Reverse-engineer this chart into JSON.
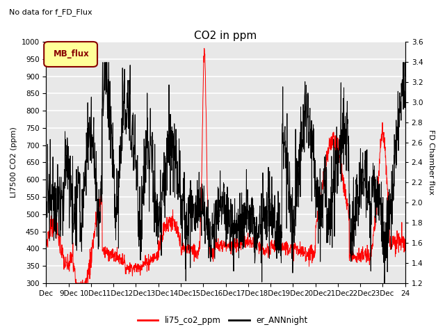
{
  "title": "CO2 in ppm",
  "subtitle": "No data for f_FD_Flux",
  "ylabel_left": "LI7500 CO2 (ppm)",
  "ylabel_right": "FD Chamber flux",
  "ylim_left": [
    300,
    1000
  ],
  "ylim_right": [
    1.2,
    3.6
  ],
  "yticks_left": [
    300,
    350,
    400,
    450,
    500,
    550,
    600,
    650,
    700,
    750,
    800,
    850,
    900,
    950,
    1000
  ],
  "yticks_right": [
    1.2,
    1.4,
    1.6,
    1.8,
    2.0,
    2.2,
    2.4,
    2.6,
    2.8,
    3.0,
    3.2,
    3.4,
    3.6
  ],
  "xtick_labels": [
    "Dec",
    "9Dec",
    "10Dec",
    "11Dec",
    "12Dec",
    "13Dec",
    "14Dec",
    "15Dec",
    "16Dec",
    "17Dec",
    "18Dec",
    "19Dec",
    "20Dec",
    "21Dec",
    "22Dec",
    "23Dec",
    "24"
  ],
  "line1_color": "#ff0000",
  "line2_color": "#000000",
  "line1_label": "li75_co2_ppm",
  "line2_label": "er_ANNnight",
  "legend_box_facecolor": "#ffff99",
  "legend_box_label": "MB_flux",
  "legend_box_edgecolor": "#880000",
  "background_color": "#e8e8e8",
  "grid_color": "#ffffff"
}
